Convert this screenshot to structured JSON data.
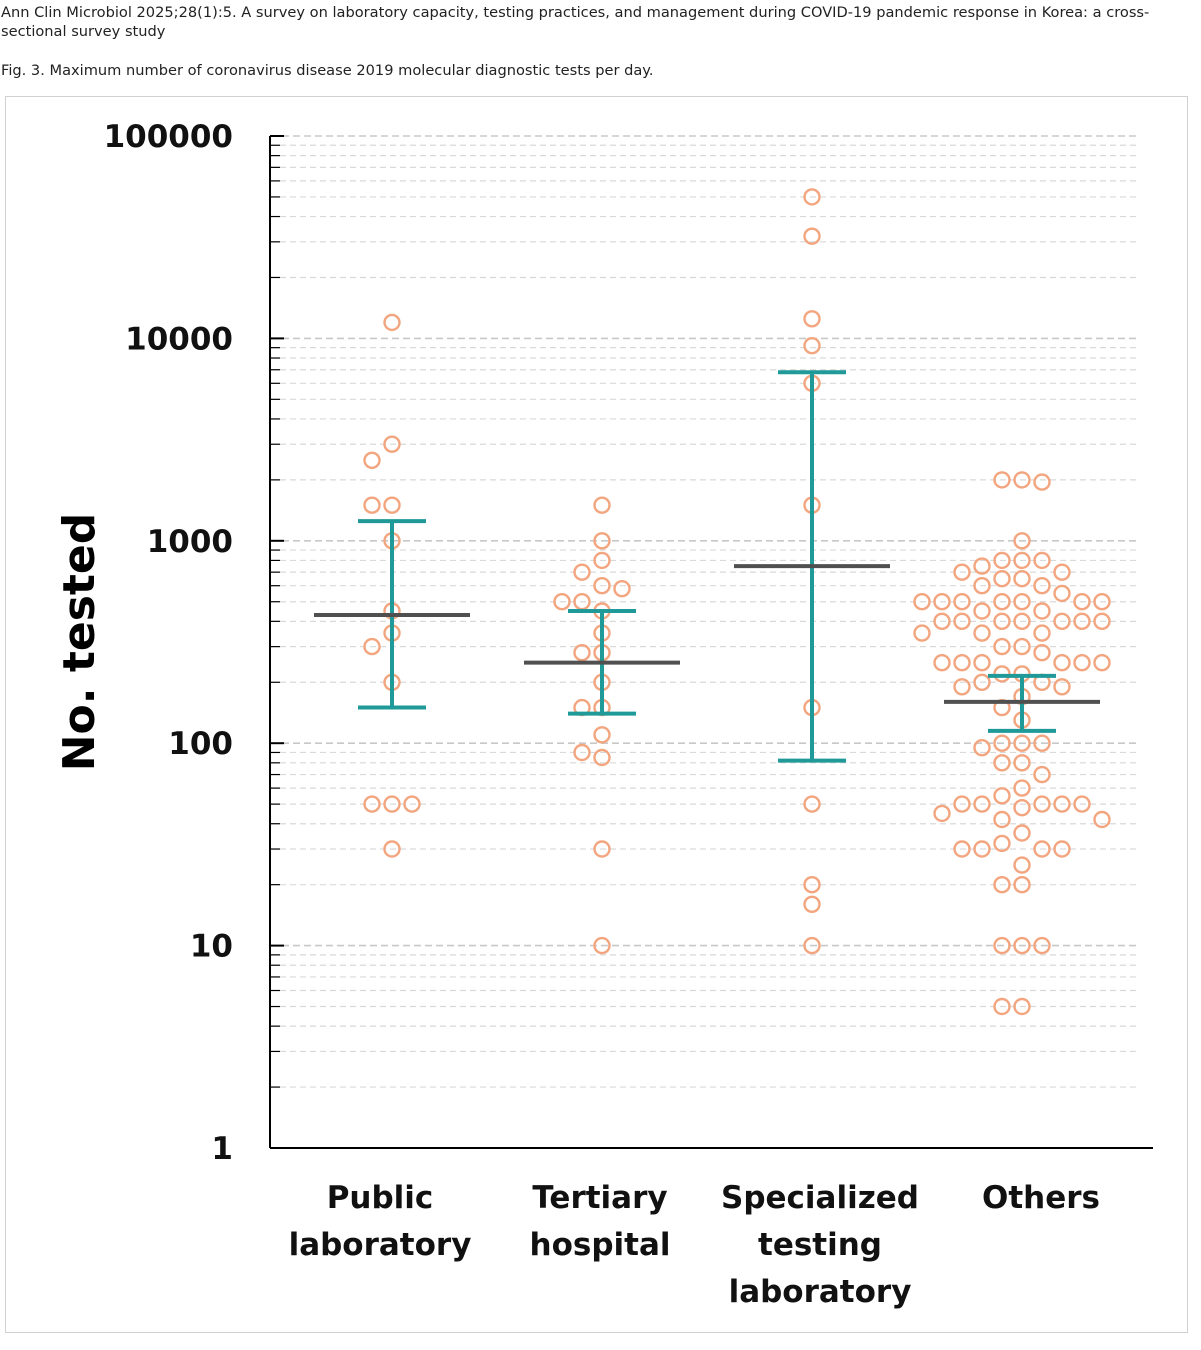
{
  "citation": "Ann Clin Microbiol 2025;28(1):5. A survey on laboratory capacity, testing practices, and management during COVID-19 pandemic response in Korea: a cross-sectional survey study",
  "caption": "Fig. 3. Maximum number of coronavirus disease 2019 molecular diagnostic tests per day.",
  "chart_data": {
    "type": "scatter",
    "title": "",
    "xlabel": "",
    "ylabel": "No. tested",
    "y_scale": "log",
    "ylim": [
      1,
      100000
    ],
    "y_ticks": [
      1,
      10,
      100,
      1000,
      10000,
      100000
    ],
    "y_tick_labels": [
      "1",
      "10",
      "100",
      "1000",
      "10000",
      "100000"
    ],
    "grid": "horizontal dashed",
    "colors": {
      "points": "#f2a57e",
      "error_bars": "#1f9a99",
      "median": "#505050",
      "axis": "#000000",
      "grid": "#d9d9d9"
    },
    "categories": [
      {
        "label_lines": [
          "Public",
          "laboratory"
        ],
        "median": 430,
        "error_low": 150,
        "error_high": 1250,
        "points": [
          12000,
          3000,
          2500,
          1500,
          1500,
          1000,
          450,
          350,
          300,
          200,
          50,
          50,
          50,
          30
        ]
      },
      {
        "label_lines": [
          "Tertiary",
          "hospital"
        ],
        "median": 250,
        "error_low": 140,
        "error_high": 450,
        "points": [
          1500,
          1000,
          800,
          700,
          600,
          580,
          500,
          500,
          450,
          350,
          280,
          280,
          200,
          150,
          150,
          110,
          90,
          85,
          30,
          10
        ]
      },
      {
        "label_lines": [
          "Specialized",
          "testing",
          "laboratory"
        ],
        "median": 750,
        "error_low": 82,
        "error_high": 6800,
        "points": [
          50000,
          32000,
          12500,
          9200,
          6000,
          1500,
          150,
          50,
          20,
          16,
          10
        ]
      },
      {
        "label_lines": [
          "Others"
        ],
        "median": 160,
        "error_low": 115,
        "error_high": 215,
        "points": [
          2000,
          2000,
          1950,
          1000,
          800,
          800,
          800,
          750,
          700,
          700,
          650,
          650,
          600,
          600,
          550,
          500,
          500,
          500,
          500,
          500,
          500,
          500,
          450,
          450,
          400,
          400,
          400,
          400,
          400,
          400,
          400,
          350,
          350,
          350,
          300,
          300,
          280,
          250,
          250,
          250,
          250,
          250,
          250,
          220,
          220,
          200,
          200,
          190,
          190,
          170,
          150,
          130,
          100,
          100,
          100,
          95,
          80,
          80,
          70,
          60,
          55,
          50,
          50,
          50,
          50,
          50,
          48,
          45,
          42,
          42,
          36,
          32,
          30,
          30,
          30,
          30,
          25,
          20,
          20,
          10,
          10,
          10,
          5,
          5
        ]
      }
    ]
  }
}
